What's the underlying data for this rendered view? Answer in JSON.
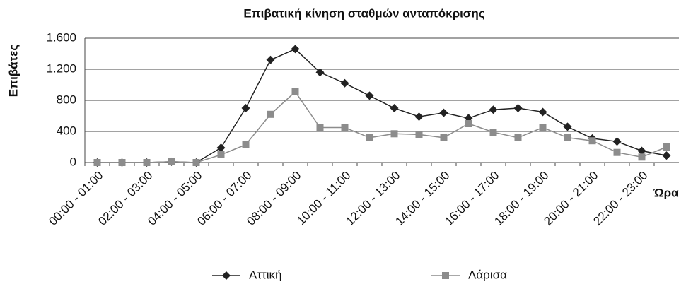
{
  "chart_data": {
    "type": "line",
    "title": "Επιβατική κίνηση σταθμών ανταπόκρισης",
    "y_label": "Επιβάτες",
    "x_label": "Ώρα",
    "categories": [
      "00:00 - 01:00",
      null,
      "02:00 - 03:00",
      null,
      "04:00 - 05:00",
      null,
      "06:00 - 07:00",
      null,
      "08:00 - 09:00",
      null,
      "10:00 - 11:00",
      null,
      "12:00 - 13:00",
      null,
      "14:00 - 15:00",
      null,
      "16:00 - 17:00",
      null,
      "18:00 - 19:00",
      null,
      "20:00 - 21:00",
      null,
      "22:00 - 23:00",
      null
    ],
    "series": [
      {
        "name": "Αττική",
        "color": "#222222",
        "marker": "diamond",
        "values": [
          0,
          0,
          0,
          10,
          0,
          190,
          700,
          1320,
          1460,
          1160,
          1020,
          860,
          700,
          590,
          640,
          570,
          680,
          700,
          650,
          460,
          310,
          270,
          150,
          90
        ]
      },
      {
        "name": "Λάρισα",
        "color": "#8c8c8c",
        "marker": "square",
        "values": [
          0,
          0,
          0,
          10,
          0,
          100,
          230,
          620,
          910,
          450,
          450,
          320,
          370,
          360,
          320,
          500,
          390,
          320,
          450,
          320,
          280,
          130,
          70,
          200
        ]
      }
    ],
    "ylim": [
      0,
      1600
    ],
    "yticks": [
      0,
      400,
      800,
      {
        "value": 1200,
        "label": "1.200"
      },
      {
        "value": 1600,
        "label": "1.600"
      }
    ],
    "grid": true,
    "legend": "bottom"
  }
}
